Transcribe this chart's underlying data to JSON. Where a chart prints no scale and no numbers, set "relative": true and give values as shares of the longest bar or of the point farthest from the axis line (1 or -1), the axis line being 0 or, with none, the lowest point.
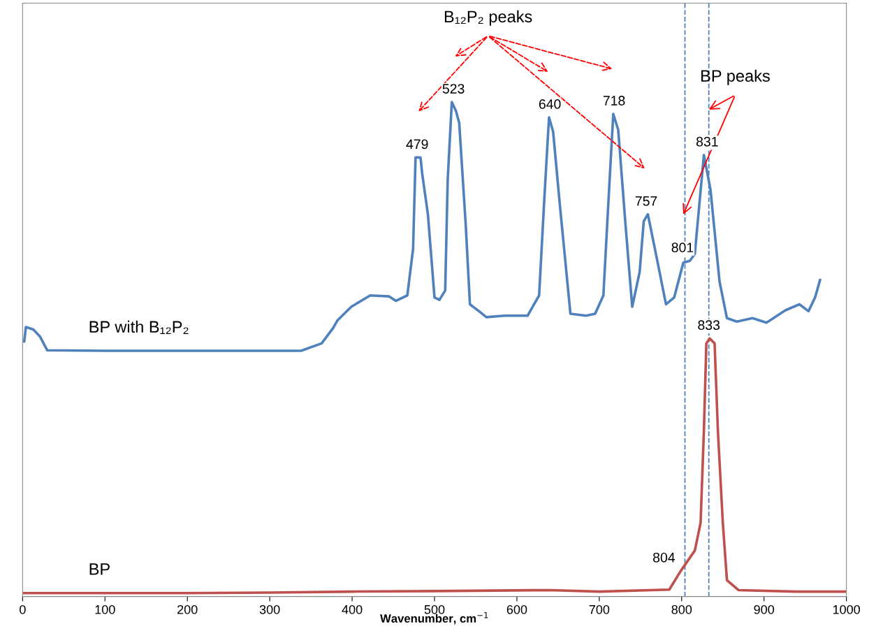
{
  "chart_data": {
    "type": "line",
    "relative": true,
    "xlabel": "Wavenumber, cm$^{−1}$",
    "xlim": [
      0,
      1000
    ],
    "xticks": [
      0,
      100,
      200,
      300,
      400,
      500,
      600,
      700,
      800,
      900,
      1000
    ],
    "grid": false,
    "marker": "none",
    "line_style": "solid",
    "series": [
      {
        "name": "BP with B₁₂P₂",
        "color": "#4f81bd",
        "x": [
          2,
          4,
          13,
          21,
          30,
          100,
          200,
          300,
          338,
          363,
          377,
          382,
          399,
          422,
          445,
          453,
          467,
          474,
          477,
          483,
          485,
          492,
          500,
          506,
          513,
          516,
          521,
          526,
          530,
          538,
          543,
          554,
          563,
          585,
          613,
          627,
          633,
          639,
          644,
          652,
          665,
          684,
          695,
          705,
          711,
          717,
          723,
          732,
          740,
          749,
          754,
          759,
          770,
          781,
          791,
          802,
          810,
          816,
          827,
          835,
          846,
          855,
          867,
          886,
          903,
          926,
          943,
          954,
          962,
          968
        ],
        "values": [
          0.516,
          0.545,
          0.54,
          0.526,
          0.498,
          0.497,
          0.497,
          0.497,
          0.497,
          0.512,
          0.543,
          0.558,
          0.586,
          0.609,
          0.607,
          0.598,
          0.609,
          0.703,
          0.888,
          0.888,
          0.856,
          0.773,
          0.605,
          0.6,
          0.619,
          0.842,
          1.0,
          0.982,
          0.958,
          0.749,
          0.591,
          0.577,
          0.565,
          0.568,
          0.568,
          0.609,
          0.795,
          0.969,
          0.94,
          0.795,
          0.572,
          0.568,
          0.572,
          0.609,
          0.795,
          0.976,
          0.944,
          0.749,
          0.586,
          0.656,
          0.759,
          0.773,
          0.683,
          0.591,
          0.605,
          0.675,
          0.679,
          0.693,
          0.893,
          0.823,
          0.637,
          0.563,
          0.556,
          0.563,
          0.554,
          0.579,
          0.591,
          0.577,
          0.605,
          0.64
        ]
      },
      {
        "name": "BP",
        "color": "#c0504d",
        "x": [
          0,
          100,
          200,
          300,
          400,
          500,
          640,
          700,
          785,
          799,
          816,
          823,
          827,
          830,
          834,
          840,
          844,
          850,
          855,
          869,
          939,
          1000
        ],
        "values": [
          0.007,
          0.007,
          0.007,
          0.008,
          0.01,
          0.011,
          0.013,
          0.01,
          0.014,
          0.052,
          0.093,
          0.149,
          0.335,
          0.512,
          0.522,
          0.512,
          0.335,
          0.149,
          0.033,
          0.013,
          0.01,
          0.01
        ]
      }
    ],
    "ref_lines": [
      {
        "axis": "x",
        "value": 804,
        "color": "#4f81bd",
        "line_style": "dashed"
      },
      {
        "axis": "x",
        "value": 833,
        "color": "#4f81bd",
        "line_style": "dashed"
      }
    ],
    "annotations": [
      {
        "text": "479",
        "x": 479,
        "y": 0.888
      },
      {
        "text": "523",
        "x": 523,
        "y": 1.0
      },
      {
        "text": "640",
        "x": 640,
        "y": 0.969
      },
      {
        "text": "718",
        "x": 718,
        "y": 0.976
      },
      {
        "text": "757",
        "x": 757,
        "y": 0.773
      },
      {
        "text": "801",
        "x": 801,
        "y": 0.679
      },
      {
        "text": "831",
        "x": 831,
        "y": 0.893
      },
      {
        "text": "833",
        "x": 833,
        "y": 0.522
      },
      {
        "text": "804",
        "x": 804,
        "y": 0.052
      },
      "B₁₂P₂ peaks",
      "BP peaks"
    ]
  }
}
